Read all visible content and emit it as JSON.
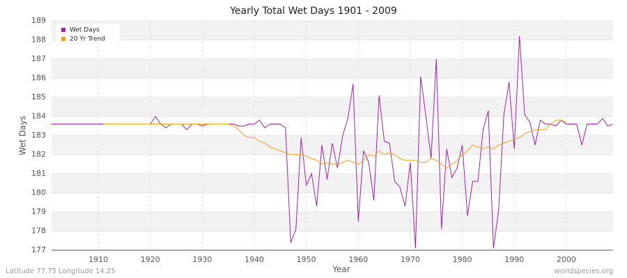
{
  "chart_data": {
    "type": "line",
    "title": "Yearly Total Wet Days 1901 - 2009",
    "x_label": "Year",
    "y_label": "Wet Days",
    "footer_left": "Latitude 77.75 Longitude 14.25",
    "footer_right": "worldspecies.org",
    "legend": "top-left",
    "grid": true,
    "xlim": [
      1901,
      2009
    ],
    "xticks": [
      1910,
      1920,
      1930,
      1940,
      1950,
      1960,
      1970,
      1980,
      1990,
      2000
    ],
    "ylim": [
      177,
      189
    ],
    "yticks": [
      177,
      178,
      179,
      180,
      181,
      182,
      183,
      184,
      185,
      186,
      187,
      188,
      189
    ],
    "x": [
      1901,
      1902,
      1903,
      1904,
      1905,
      1906,
      1907,
      1908,
      1909,
      1910,
      1911,
      1912,
      1913,
      1914,
      1915,
      1916,
      1917,
      1918,
      1919,
      1920,
      1921,
      1922,
      1923,
      1924,
      1925,
      1926,
      1927,
      1928,
      1929,
      1930,
      1931,
      1932,
      1933,
      1934,
      1935,
      1936,
      1937,
      1938,
      1939,
      1940,
      1941,
      1942,
      1943,
      1944,
      1945,
      1946,
      1947,
      1948,
      1949,
      1950,
      1951,
      1952,
      1953,
      1954,
      1955,
      1956,
      1957,
      1958,
      1959,
      1960,
      1961,
      1962,
      1963,
      1964,
      1965,
      1966,
      1967,
      1968,
      1969,
      1970,
      1971,
      1972,
      1973,
      1974,
      1975,
      1976,
      1977,
      1978,
      1979,
      1980,
      1981,
      1982,
      1983,
      1984,
      1985,
      1986,
      1987,
      1988,
      1989,
      1990,
      1991,
      1992,
      1993,
      1994,
      1995,
      1996,
      1997,
      1998,
      1999,
      2000,
      2001,
      2002,
      2003,
      2004,
      2005,
      2006,
      2007,
      2008,
      2009
    ],
    "series": [
      {
        "name": "Wet Days",
        "color": "#a020a8",
        "values": [
          183.6,
          183.6,
          183.6,
          183.6,
          183.6,
          183.6,
          183.6,
          183.6,
          183.6,
          183.6,
          183.6,
          183.6,
          183.6,
          183.6,
          183.6,
          183.6,
          183.6,
          183.6,
          183.6,
          183.6,
          184.0,
          183.6,
          183.4,
          183.6,
          183.6,
          183.6,
          183.3,
          183.6,
          183.6,
          183.5,
          183.6,
          183.6,
          183.6,
          183.6,
          183.6,
          183.6,
          183.5,
          183.5,
          183.6,
          183.6,
          183.8,
          183.4,
          183.6,
          183.6,
          183.6,
          183.4,
          177.4,
          178.1,
          182.9,
          180.4,
          181.0,
          179.3,
          182.5,
          180.7,
          182.6,
          181.3,
          183.0,
          183.9,
          185.7,
          178.5,
          182.2,
          181.6,
          179.6,
          185.1,
          182.7,
          182.6,
          180.6,
          180.3,
          179.3,
          181.6,
          177.1,
          186.1,
          184.0,
          181.8,
          187.0,
          178.1,
          182.3,
          180.8,
          181.3,
          182.5,
          178.8,
          180.6,
          180.6,
          183.3,
          184.3,
          177.1,
          179.1,
          184.1,
          185.8,
          182.3,
          188.2,
          184.1,
          183.7,
          182.5,
          183.8,
          183.6,
          183.6,
          183.5,
          183.8,
          183.6,
          183.6,
          183.6,
          182.5,
          183.6,
          183.6,
          183.6,
          183.9,
          183.5,
          183.6
        ]
      },
      {
        "name": "20 Yr Trend",
        "color": "#f5a020",
        "values": [
          null,
          null,
          null,
          null,
          null,
          null,
          null,
          null,
          null,
          null,
          183.6,
          183.6,
          183.6,
          183.6,
          183.6,
          183.6,
          183.6,
          183.6,
          183.6,
          183.6,
          183.6,
          183.6,
          183.6,
          183.6,
          183.6,
          183.6,
          183.6,
          183.6,
          183.6,
          183.6,
          183.6,
          183.6,
          183.6,
          183.6,
          183.6,
          183.5,
          183.3,
          183.0,
          182.9,
          182.9,
          182.7,
          182.6,
          182.4,
          182.3,
          182.2,
          182.1,
          182.0,
          182.0,
          182.0,
          181.9,
          181.8,
          181.7,
          181.5,
          181.6,
          181.5,
          181.5,
          181.6,
          181.7,
          181.6,
          181.5,
          181.7,
          182.0,
          181.9,
          182.2,
          182.0,
          182.1,
          182.0,
          181.8,
          181.7,
          181.7,
          181.7,
          181.6,
          181.6,
          181.8,
          181.7,
          181.5,
          181.3,
          181.5,
          181.7,
          182.0,
          182.2,
          182.5,
          182.4,
          182.3,
          182.4,
          182.3,
          182.5,
          182.6,
          182.7,
          182.8,
          182.9,
          183.1,
          183.2,
          183.3,
          183.3,
          183.3,
          183.6,
          183.8,
          183.8,
          183.7,
          null,
          null,
          null,
          null,
          null,
          null,
          null,
          null,
          null
        ]
      }
    ]
  }
}
